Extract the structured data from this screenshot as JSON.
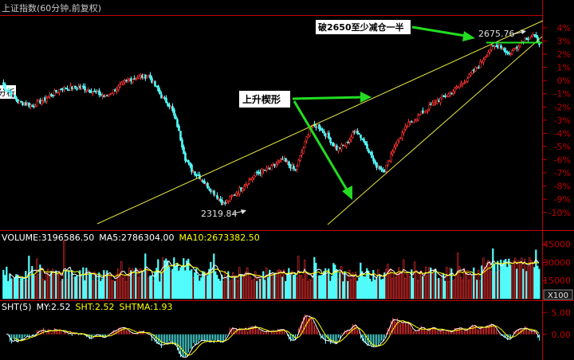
{
  "title": "上证指数(60分钟,前复权)",
  "colors": {
    "background": "#000000",
    "up": "#ff3232",
    "down": "#54ffff",
    "axis_red": "#c00000",
    "ma5": "#ffffff",
    "ma10": "#ffff00",
    "trendline": "#e8e840",
    "arrow": "#22dd22",
    "label_white": "#ffffff"
  },
  "chart_data": [
    {
      "type": "candlestick",
      "panel": "price",
      "y_axis_ticks": [
        "4%",
        "3%",
        "2%",
        "1%",
        "0%",
        "-1%",
        "-2%",
        "-3%",
        "-4%",
        "-5%",
        "-6%",
        "-7%",
        "-8%",
        "-9%",
        "-10%"
      ],
      "ylim_pct": [
        -10.8,
        4.6
      ],
      "side_label": "分析",
      "points": [
        {
          "t": 0,
          "y": -0.2
        },
        {
          "t": 10,
          "y": -1.6
        },
        {
          "t": 19,
          "y": -1.9
        },
        {
          "t": 27,
          "y": -1.4
        },
        {
          "t": 37,
          "y": -0.6
        },
        {
          "t": 50,
          "y": -0.5
        },
        {
          "t": 65,
          "y": -1.2
        },
        {
          "t": 80,
          "y": 0.1
        },
        {
          "t": 92,
          "y": 0.4
        },
        {
          "t": 100,
          "y": -1.2
        },
        {
          "t": 106,
          "y": -2.0
        },
        {
          "t": 110,
          "y": -3.4
        },
        {
          "t": 115,
          "y": -5.9
        },
        {
          "t": 119,
          "y": -6.8
        },
        {
          "t": 124,
          "y": -7.3
        },
        {
          "t": 128,
          "y": -7.9
        },
        {
          "t": 133,
          "y": -8.5
        },
        {
          "t": 139,
          "y": -9.4
        },
        {
          "t": 146,
          "y": -8.6
        },
        {
          "t": 153,
          "y": -7.8
        },
        {
          "t": 160,
          "y": -7.0
        },
        {
          "t": 168,
          "y": -6.7
        },
        {
          "t": 176,
          "y": -6.0
        },
        {
          "t": 184,
          "y": -6.8
        },
        {
          "t": 189,
          "y": -5.1
        },
        {
          "t": 193,
          "y": -3.6
        },
        {
          "t": 198,
          "y": -3.4
        },
        {
          "t": 204,
          "y": -4.2
        },
        {
          "t": 210,
          "y": -5.2
        },
        {
          "t": 216,
          "y": -4.8
        },
        {
          "t": 222,
          "y": -3.7
        },
        {
          "t": 229,
          "y": -5.0
        },
        {
          "t": 234,
          "y": -6.4
        },
        {
          "t": 240,
          "y": -6.8
        },
        {
          "t": 246,
          "y": -5.0
        },
        {
          "t": 254,
          "y": -3.4
        },
        {
          "t": 262,
          "y": -2.6
        },
        {
          "t": 272,
          "y": -1.6
        },
        {
          "t": 282,
          "y": -0.9
        },
        {
          "t": 292,
          "y": 0.2
        },
        {
          "t": 300,
          "y": 1.3
        },
        {
          "t": 306,
          "y": 2.4
        },
        {
          "t": 312,
          "y": 2.7
        },
        {
          "t": 318,
          "y": 2.0
        },
        {
          "t": 323,
          "y": 2.6
        },
        {
          "t": 328,
          "y": 3.2
        },
        {
          "t": 333,
          "y": 3.4
        },
        {
          "t": 337,
          "y": 2.9
        }
      ],
      "annotations": [
        {
          "text": "2319.84",
          "kind": "low_marker"
        },
        {
          "text": "2675.76",
          "kind": "high_marker"
        },
        {
          "text": "上升楔形",
          "kind": "callout"
        },
        {
          "text": "破2650至少减仓一半",
          "kind": "callout"
        }
      ]
    },
    {
      "type": "bar",
      "panel": "volume",
      "legend": [
        {
          "label": "VOLUME:3196586.50",
          "color": "#ffffff"
        },
        {
          "label": "MA5:2786304.00",
          "color": "#ffffff"
        },
        {
          "label": "MA10:2673382.50",
          "color": "#ffff00"
        }
      ],
      "y_axis_ticks": [
        "45000",
        "30000",
        "15000"
      ],
      "unit_label": "X100",
      "ylim": [
        0,
        52000
      ]
    },
    {
      "type": "bar",
      "panel": "indicator",
      "legend": [
        {
          "label": "SHT(5)",
          "color": "#ffffff"
        },
        {
          "label": "MY:2.52",
          "color": "#ffffff"
        },
        {
          "label": "SHT:2.52",
          "color": "#ffff00"
        },
        {
          "label": "SHTMA:1.93",
          "color": "#ffff00"
        }
      ],
      "y_axis_ticks": [
        "5.00",
        "0.00"
      ],
      "ylim": [
        -5.5,
        6.5
      ]
    }
  ]
}
